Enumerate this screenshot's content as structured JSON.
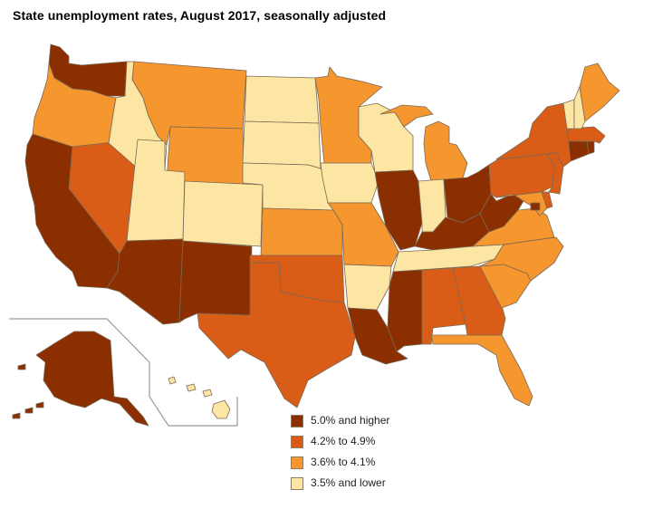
{
  "title": "State unemployment rates, August 2017, seasonally adjusted",
  "colors": {
    "high": "#8b2e00",
    "upper": "#d95d16",
    "lower": "#f6962e",
    "low": "#fde6a3",
    "border": "#7a6a55"
  },
  "legend": [
    {
      "label": "5.0% and higher",
      "color": "#8b2e00"
    },
    {
      "label": "4.2% to 4.9%",
      "color": "#d95d16"
    },
    {
      "label": "3.6% to 4.1%",
      "color": "#f6962e"
    },
    {
      "label": "3.5% and lower",
      "color": "#fde6a3"
    }
  ],
  "state_classes": {
    "WA": "high",
    "OR": "lower",
    "CA": "high",
    "NV": "upper",
    "ID": "low",
    "MT": "lower",
    "WY": "lower",
    "UT": "low",
    "AZ": "high",
    "CO": "low",
    "NM": "high",
    "ND": "low",
    "SD": "low",
    "NE": "low",
    "KS": "lower",
    "OK": "upper",
    "TX": "upper",
    "MN": "lower",
    "IA": "low",
    "MO": "lower",
    "AR": "low",
    "LA": "high",
    "WI": "low",
    "IL": "high",
    "MS": "high",
    "MI": "lower",
    "IN": "low",
    "KY": "high",
    "TN": "low",
    "AL": "upper",
    "OH": "high",
    "WV": "high",
    "VA": "lower",
    "NC": "lower",
    "SC": "lower",
    "GA": "upper",
    "FL": "lower",
    "PA": "upper",
    "NY": "upper",
    "NJ": "upper",
    "MD": "lower",
    "DE": "upper",
    "DC": "high",
    "CT": "high",
    "RI": "high",
    "MA": "upper",
    "VT": "low",
    "NH": "low",
    "ME": "lower",
    "AK": "high",
    "HI": "low"
  }
}
